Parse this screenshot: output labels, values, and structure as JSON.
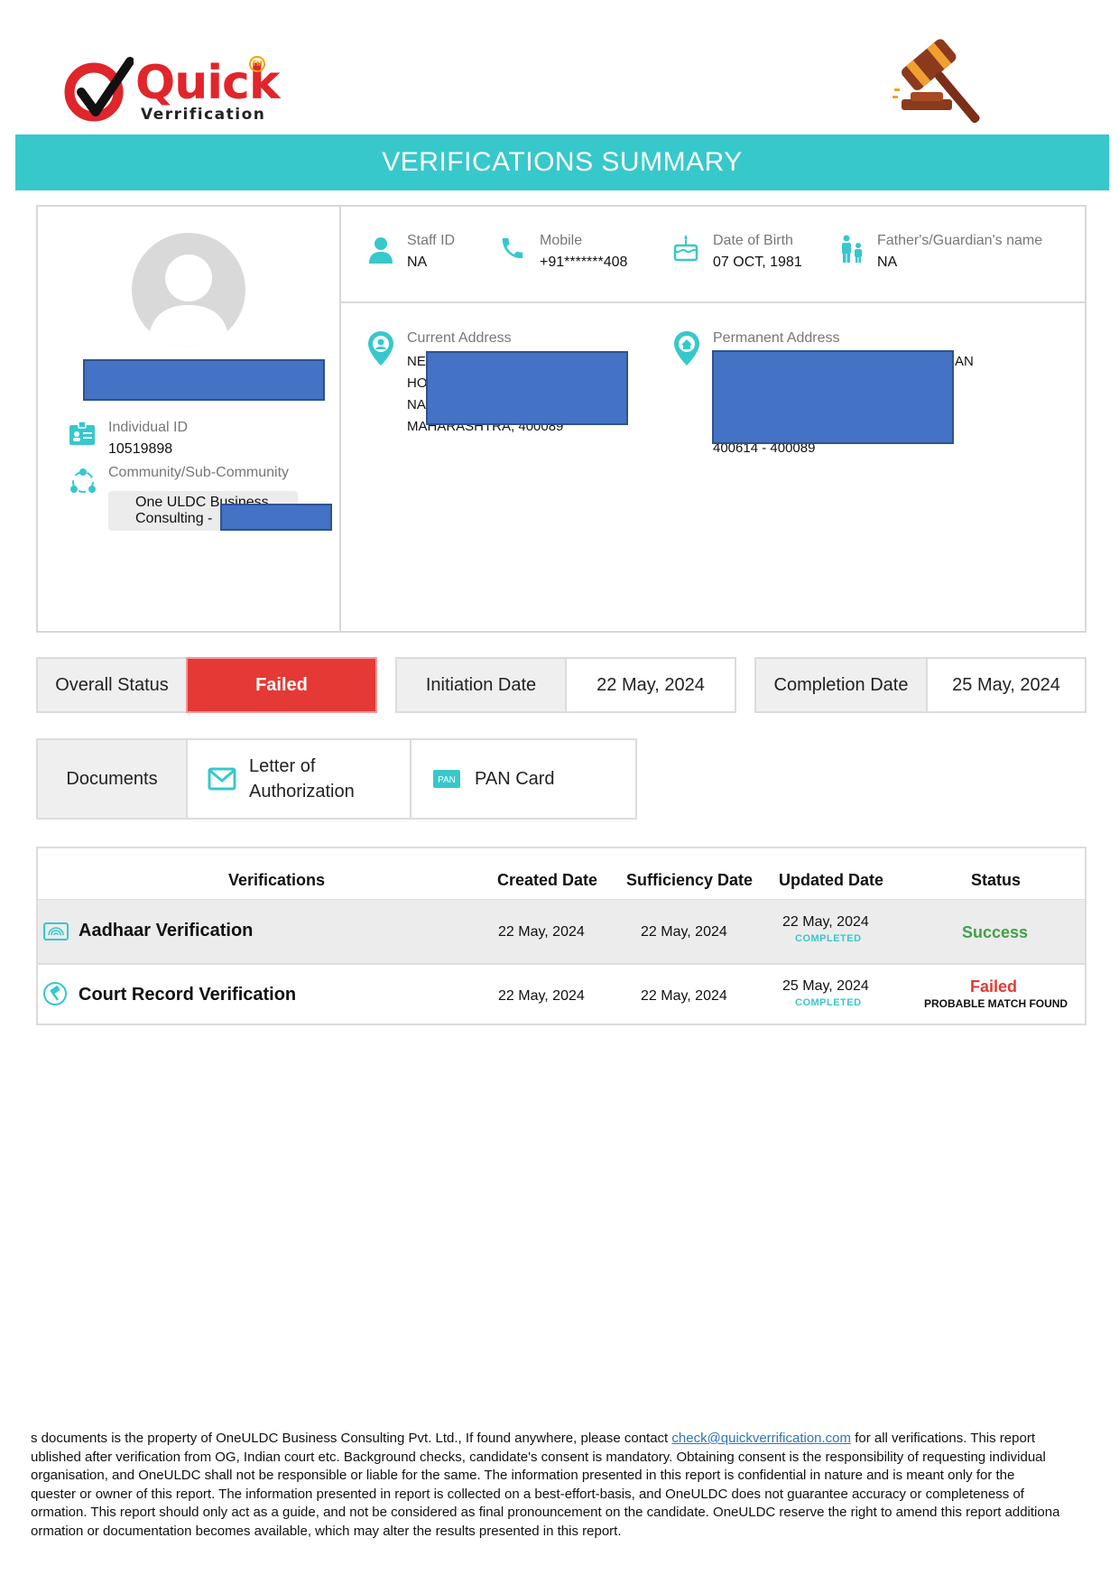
{
  "logo": {
    "word": "Quick",
    "sub": "Verrification",
    "tm": "TM"
  },
  "banner": {
    "title": "VERIFICATIONS SUMMARY"
  },
  "profile": {
    "individual_id_label": "Individual ID",
    "individual_id": "10519898",
    "community_label": "Community/Sub-Community",
    "community_line1": "One ULDC Business",
    "community_line2": "Consulting -"
  },
  "details": {
    "staff_id_label": "Staff ID",
    "staff_id": "NA",
    "mobile_label": "Mobile",
    "mobile": "+91*******408",
    "dob_label": "Date of Birth",
    "dob": "07 OCT, 1981",
    "guardian_label": "Father's/Guardian's name",
    "guardian": "NA"
  },
  "address": {
    "current_label": "Current Address",
    "current_lines": [
      "NE",
      "HO",
      "NA",
      "MAHARASHTRA, 400089"
    ],
    "current_trail": ",",
    "permanent_label": "Permanent Address",
    "permanent_trail": "AN",
    "permanent_last": "400614 - 400089"
  },
  "status_row": {
    "overall_label": "Overall Status",
    "overall_value": "Failed",
    "initiation_label": "Initiation Date",
    "initiation_value": "22 May, 2024",
    "completion_label": "Completion Date",
    "completion_value": "25 May, 2024"
  },
  "documents": {
    "label": "Documents",
    "items": [
      {
        "line1": "Letter of",
        "line2": "Authorization",
        "icon": "mail-icon"
      },
      {
        "label": "PAN Card",
        "icon": "pan-card-icon",
        "badge": "PAN"
      }
    ]
  },
  "table": {
    "headers": [
      "Verifications",
      "Created Date",
      "Sufficiency Date",
      "Updated Date",
      "Status"
    ],
    "rows": [
      {
        "name": "Aadhaar Verification",
        "created": "22 May, 2024",
        "sufficiency": "22 May, 2024",
        "updated": "22 May, 2024",
        "updated_sub": "COMPLETED",
        "status": "Success",
        "status_sub": ""
      },
      {
        "name": "Court Record Verification",
        "created": "22 May, 2024",
        "sufficiency": "22 May, 2024",
        "updated": "25 May, 2024",
        "updated_sub": "COMPLETED",
        "status": "Failed",
        "status_sub": "PROBABLE MATCH FOUND"
      }
    ]
  },
  "colors": {
    "accent": "#37c8cc",
    "failed": "#e53935",
    "success": "#43a047",
    "redaction": "#4472c4"
  },
  "footer": {
    "l1_a": "s documents is the property of OneULDC Business Consulting Pvt. Ltd., If found anywhere, please contact ",
    "email": "check@quickverrification.com",
    "l1_b": " for all verifications. This report",
    "l2": "ublished after verification from OG, Indian court etc. Background checks, candidate's consent is mandatory. Obtaining consent is the responsibility of requesting individual",
    "l3": "organisation, and OneULDC shall not be responsible or liable for the same. The information presented in this report is confidential in nature and is meant only for the",
    "l4": "quester or owner of this report. The information presented in report is collected on a best-effort-basis, and OneULDC does not guarantee accuracy or completeness of",
    "l5": "ormation. This report should only act as a guide, and not be considered as final pronouncement on the candidate. OneULDC reserve the right to amend this report additional",
    "l6": "ormation or documentation becomes available, which may alter the results presented in this report."
  }
}
